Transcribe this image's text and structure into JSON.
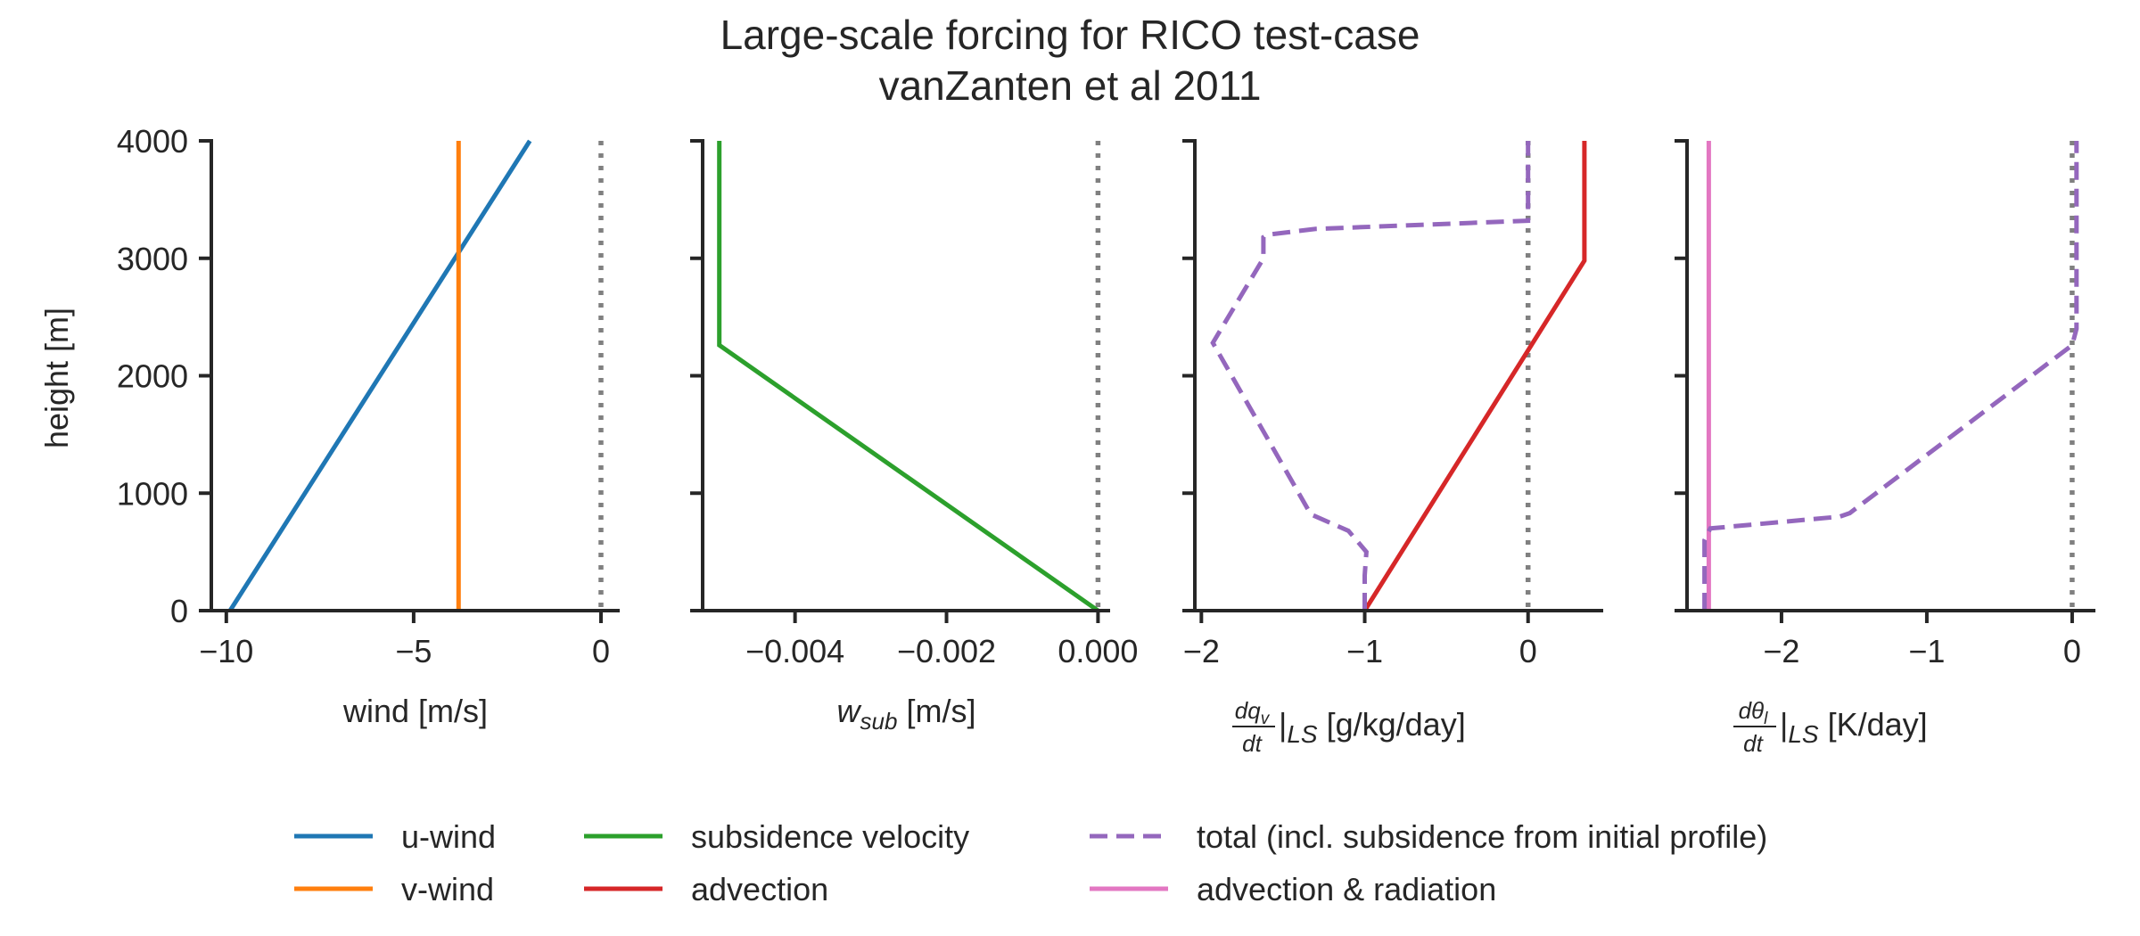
{
  "chart_data": {
    "title": [
      "Large-scale forcing for RICO test-case",
      "vanZanten et al 2011"
    ],
    "shared_y": {
      "label": "height [m]",
      "ylim": [
        0,
        4000
      ],
      "ticks": [
        0,
        1000,
        2000,
        3000,
        4000
      ],
      "tick_labels": [
        "0",
        "1000",
        "2000",
        "3000",
        "4000"
      ]
    },
    "panels": [
      {
        "type": "line",
        "xlabel": {
          "main": "wind [m/s]"
        },
        "xlim": [
          -10.4,
          0.5
        ],
        "ticks": [
          -10,
          -5,
          0
        ],
        "tick_labels": [
          "−10",
          "−5",
          "0"
        ],
        "zero_line": true,
        "series": [
          {
            "name": "u-wind",
            "color": "#1f77b4",
            "dash": "solid",
            "x": [
              -9.9,
              -1.9
            ],
            "y": [
              0,
              4000
            ]
          },
          {
            "name": "v-wind",
            "color": "#ff7f0e",
            "dash": "solid",
            "x": [
              -3.8,
              -3.8
            ],
            "y": [
              0,
              4000
            ]
          }
        ]
      },
      {
        "type": "line",
        "xlabel": {
          "sym": "w",
          "sub": "sub",
          "unit": " [m/s]"
        },
        "xlim": [
          -0.00522,
          0.00016
        ],
        "ticks": [
          -0.004,
          -0.002,
          0.0
        ],
        "tick_labels": [
          "−0.004",
          "−0.002",
          "0.000"
        ],
        "zero_line": true,
        "series": [
          {
            "name": "subsidence velocity",
            "color": "#2ca02c",
            "dash": "solid",
            "x": [
              0.0,
              -0.005,
              -0.005
            ],
            "y": [
              0,
              2260,
              4000
            ]
          }
        ]
      },
      {
        "type": "line",
        "xlabel": {
          "num": "dq",
          "num_sub": "v",
          "den": "dt",
          "after": "|",
          "sub": "LS",
          "unit": " [g/kg/day]"
        },
        "xlim": [
          -2.04,
          0.46
        ],
        "ticks": [
          -2,
          -1,
          0
        ],
        "tick_labels": [
          "−2",
          "−1",
          "0"
        ],
        "zero_line": true,
        "series": [
          {
            "name": "advection",
            "color": "#d62728",
            "dash": "solid",
            "x": [
              -1.0,
              0.345,
              0.345
            ],
            "y": [
              0,
              2980,
              4000
            ]
          },
          {
            "name": "total (incl. subsidence from initial profile)",
            "color": "#9467bd",
            "dash": "dashed",
            "x": [
              -1.0,
              -1.0,
              -0.99,
              -1.1,
              -1.33,
              -1.93,
              -1.62,
              -1.62,
              -1.6,
              -1.3,
              0.0,
              0.0,
              0.0
            ],
            "y": [
              0,
              300,
              500,
              680,
              820,
              2280,
              3000,
              3180,
              3200,
              3250,
              3320,
              3500,
              4000
            ]
          }
        ]
      },
      {
        "type": "line",
        "xlabel": {
          "num": "dθ",
          "num_sub": "l",
          "den": "dt",
          "after": "|",
          "sub": "LS",
          "unit": " [K/day]"
        },
        "xlim": [
          -2.65,
          0.16
        ],
        "ticks": [
          -2,
          -1,
          0
        ],
        "tick_labels": [
          "−2",
          "−1",
          "0"
        ],
        "zero_line": true,
        "series": [
          {
            "name": "advection & radiation",
            "color": "#e377c2",
            "dash": "solid",
            "x": [
              -2.5,
              -2.5
            ],
            "y": [
              0,
              4000
            ]
          },
          {
            "name": "total (incl. subsidence from initial profile)",
            "color": "#9467bd",
            "dash": "dashed",
            "x": [
              -2.53,
              -2.53,
              -2.53,
              -2.49,
              -1.6,
              -1.53,
              0.0,
              0.03,
              0.03
            ],
            "y": [
              0,
              300,
              600,
              700,
              800,
              830,
              2260,
              2400,
              4000
            ]
          }
        ]
      }
    ],
    "legend": {
      "placement": "bottom-center",
      "columns": [
        [
          {
            "label": "u-wind",
            "color": "#1f77b4",
            "dash": "solid"
          },
          {
            "label": "v-wind",
            "color": "#ff7f0e",
            "dash": "solid"
          }
        ],
        [
          {
            "label": "subsidence velocity",
            "color": "#2ca02c",
            "dash": "solid"
          },
          {
            "label": "advection",
            "color": "#d62728",
            "dash": "solid"
          }
        ],
        [
          {
            "label": "total (incl. subsidence from initial profile)",
            "color": "#9467bd",
            "dash": "dashed"
          },
          {
            "label": "advection & radiation",
            "color": "#e377c2",
            "dash": "solid"
          }
        ]
      ]
    }
  }
}
